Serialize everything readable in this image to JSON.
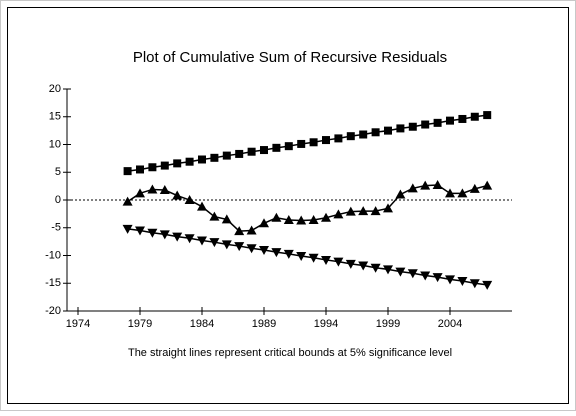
{
  "chart_data": {
    "type": "line",
    "title": "Plot of Cumulative Sum of Recursive Residuals",
    "caption": "The straight lines represent critical bounds at 5% significance level",
    "x": [
      1978,
      1979,
      1980,
      1981,
      1982,
      1983,
      1984,
      1985,
      1986,
      1987,
      1988,
      1989,
      1990,
      1991,
      1992,
      1993,
      1994,
      1995,
      1996,
      1997,
      1998,
      1999,
      2000,
      2001,
      2002,
      2003,
      2004,
      2005,
      2006,
      2007
    ],
    "series": [
      {
        "color": "#000000",
        "marker": "square",
        "values": [
          5.2,
          5.5,
          5.9,
          6.2,
          6.6,
          6.9,
          7.3,
          7.6,
          8.0,
          8.3,
          8.7,
          9.0,
          9.4,
          9.7,
          10.1,
          10.4,
          10.8,
          11.1,
          11.5,
          11.8,
          12.2,
          12.5,
          12.9,
          13.2,
          13.6,
          13.9,
          14.3,
          14.6,
          15.0,
          15.3
        ]
      },
      {
        "color": "#000000",
        "marker": "triangle-up",
        "values": [
          -0.3,
          1.2,
          1.9,
          1.8,
          0.8,
          0,
          -1.2,
          -3.0,
          -3.5,
          -5.6,
          -5.5,
          -4.2,
          -3.2,
          -3.6,
          -3.7,
          -3.6,
          -3.2,
          -2.6,
          -2.1,
          -2.0,
          -2.0,
          -1.5,
          1.0,
          2.1,
          2.6,
          2.7,
          1.2,
          1.2,
          2.0,
          2.6
        ]
      },
      {
        "color": "#000000",
        "marker": "triangle-down",
        "values": [
          -5.2,
          -5.5,
          -5.9,
          -6.2,
          -6.6,
          -6.9,
          -7.3,
          -7.6,
          -8.0,
          -8.3,
          -8.7,
          -9.0,
          -9.4,
          -9.7,
          -10.1,
          -10.4,
          -10.8,
          -11.1,
          -11.5,
          -11.8,
          -12.2,
          -12.5,
          -12.9,
          -13.2,
          -13.6,
          -13.9,
          -14.3,
          -14.6,
          -15.0,
          -15.3
        ]
      }
    ],
    "xlim": [
      1974,
      2009
    ],
    "xticks": [
      1974,
      1979,
      1984,
      1989,
      1994,
      1999,
      2004
    ],
    "ylim": [
      -20,
      20
    ],
    "yticks": [
      -20,
      -15,
      -10,
      -5,
      0,
      5,
      10,
      15,
      20
    ],
    "zero_line": true,
    "grid": false
  }
}
